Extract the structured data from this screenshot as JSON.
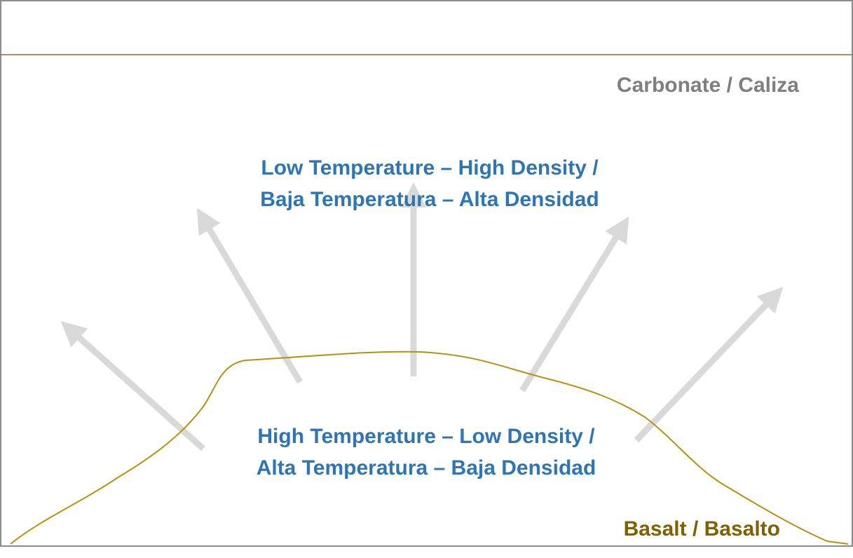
{
  "top_label": "Carbonate / Caliza",
  "upper_region": {
    "lines": [
      "Low Temperature – High Density /",
      "Baja Temperatura – Alta Densidad"
    ]
  },
  "lower_region": {
    "lines": [
      "High Temperature – Low Density /",
      "Alta Temperatura – Baja Densidad"
    ]
  },
  "bottom_label": "Basalt / Basalto"
}
